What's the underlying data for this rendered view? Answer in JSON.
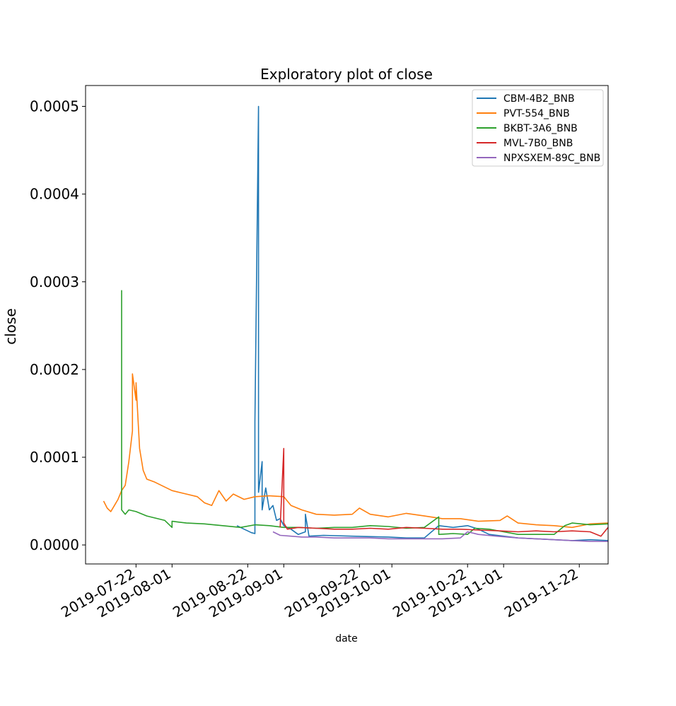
{
  "chart_data": {
    "type": "line",
    "title": "Exploratory plot of close",
    "xlabel": "date",
    "ylabel": "close",
    "xlim": [
      "2019-07-08",
      "2019-11-30"
    ],
    "ylim": [
      -2.167e-05,
      0.00052378
    ],
    "x_ticks": [
      "2019-07-22",
      "2019-08-01",
      "2019-08-22",
      "2019-09-01",
      "2019-09-22",
      "2019-10-01",
      "2019-10-22",
      "2019-11-01",
      "2019-11-22"
    ],
    "y_ticks": [
      0.0,
      0.0001,
      0.0002,
      0.0003,
      0.0004,
      0.0005
    ],
    "y_tick_labels": [
      "0.0000",
      "0.0001",
      "0.0002",
      "0.0003",
      "0.0004",
      "0.0005"
    ],
    "legend_position": "top-right",
    "series": [
      {
        "name": "CBM-4B2_BNB",
        "color": "#1f77b4",
        "points": [
          [
            "2019-08-19",
            2.2e-05
          ],
          [
            "2019-08-20",
            2e-05
          ],
          [
            "2019-08-21",
            1.8e-05
          ],
          [
            "2019-08-22",
            1.6e-05
          ],
          [
            "2019-08-23",
            1.4e-05
          ],
          [
            "2019-08-24",
            1.3e-05
          ],
          [
            "2019-08-24",
            8e-05
          ],
          [
            "2019-08-24",
            0.00014
          ],
          [
            "2019-08-25",
            0.0005
          ],
          [
            "2019-08-25",
            6e-05
          ],
          [
            "2019-08-26",
            9.5e-05
          ],
          [
            "2019-08-26",
            4e-05
          ],
          [
            "2019-08-27",
            6.5e-05
          ],
          [
            "2019-08-28",
            4e-05
          ],
          [
            "2019-08-29",
            4.5e-05
          ],
          [
            "2019-08-30",
            2.8e-05
          ],
          [
            "2019-08-31",
            3e-05
          ],
          [
            "2019-09-01",
            2.2e-05
          ],
          [
            "2019-09-03",
            1.8e-05
          ],
          [
            "2019-09-05",
            1.2e-05
          ],
          [
            "2019-09-07",
            1.5e-05
          ],
          [
            "2019-09-07",
            3.5e-05
          ],
          [
            "2019-09-08",
            1e-05
          ],
          [
            "2019-09-12",
            1.1e-05
          ],
          [
            "2019-09-20",
            1e-05
          ],
          [
            "2019-09-30",
            9e-06
          ],
          [
            "2019-10-05",
            8e-06
          ],
          [
            "2019-10-10",
            8e-06
          ],
          [
            "2019-10-12",
            1.5e-05
          ],
          [
            "2019-10-14",
            2.2e-05
          ],
          [
            "2019-10-18",
            2e-05
          ],
          [
            "2019-10-22",
            2.2e-05
          ],
          [
            "2019-10-25",
            1.8e-05
          ],
          [
            "2019-10-28",
            1.2e-05
          ],
          [
            "2019-11-01",
            1e-05
          ],
          [
            "2019-11-05",
            8e-06
          ],
          [
            "2019-11-10",
            7e-06
          ],
          [
            "2019-11-15",
            6e-06
          ],
          [
            "2019-11-20",
            5e-06
          ],
          [
            "2019-11-25",
            6e-06
          ],
          [
            "2019-11-30",
            5e-06
          ]
        ]
      },
      {
        "name": "PVT-554_BNB",
        "color": "#ff7f0e",
        "points": [
          [
            "2019-07-13",
            5e-05
          ],
          [
            "2019-07-14",
            4.2e-05
          ],
          [
            "2019-07-15",
            3.8e-05
          ],
          [
            "2019-07-16",
            4.5e-05
          ],
          [
            "2019-07-17",
            5.2e-05
          ],
          [
            "2019-07-18",
            6.2e-05
          ],
          [
            "2019-07-19",
            6.8e-05
          ],
          [
            "2019-07-20",
            9.5e-05
          ],
          [
            "2019-07-21",
            0.00013
          ],
          [
            "2019-07-21",
            0.000195
          ],
          [
            "2019-07-22",
            0.000165
          ],
          [
            "2019-07-22",
            0.000185
          ],
          [
            "2019-07-23",
            0.00011
          ],
          [
            "2019-07-24",
            8.5e-05
          ],
          [
            "2019-07-25",
            7.5e-05
          ],
          [
            "2019-07-27",
            7.2e-05
          ],
          [
            "2019-07-29",
            6.8e-05
          ],
          [
            "2019-08-01",
            6.2e-05
          ],
          [
            "2019-08-05",
            5.8e-05
          ],
          [
            "2019-08-08",
            5.5e-05
          ],
          [
            "2019-08-10",
            4.8e-05
          ],
          [
            "2019-08-12",
            4.5e-05
          ],
          [
            "2019-08-14",
            6.2e-05
          ],
          [
            "2019-08-16",
            5e-05
          ],
          [
            "2019-08-18",
            5.8e-05
          ],
          [
            "2019-08-21",
            5.2e-05
          ],
          [
            "2019-08-24",
            5.5e-05
          ],
          [
            "2019-08-28",
            5.6e-05
          ],
          [
            "2019-09-01",
            5.5e-05
          ],
          [
            "2019-09-03",
            4.5e-05
          ],
          [
            "2019-09-06",
            4e-05
          ],
          [
            "2019-09-10",
            3.5e-05
          ],
          [
            "2019-09-15",
            3.4e-05
          ],
          [
            "2019-09-20",
            3.5e-05
          ],
          [
            "2019-09-22",
            4.2e-05
          ],
          [
            "2019-09-25",
            3.5e-05
          ],
          [
            "2019-09-30",
            3.2e-05
          ],
          [
            "2019-10-05",
            3.6e-05
          ],
          [
            "2019-10-10",
            3.3e-05
          ],
          [
            "2019-10-15",
            3e-05
          ],
          [
            "2019-10-20",
            3e-05
          ],
          [
            "2019-10-25",
            2.7e-05
          ],
          [
            "2019-10-31",
            2.8e-05
          ],
          [
            "2019-11-02",
            3.3e-05
          ],
          [
            "2019-11-05",
            2.5e-05
          ],
          [
            "2019-11-10",
            2.3e-05
          ],
          [
            "2019-11-15",
            2.2e-05
          ],
          [
            "2019-11-20",
            2e-05
          ],
          [
            "2019-11-25",
            2.4e-05
          ],
          [
            "2019-11-30",
            2.5e-05
          ]
        ]
      },
      {
        "name": "BKBT-3A6_BNB",
        "color": "#2ca02c",
        "points": [
          [
            "2019-07-18",
            6.5e-05
          ],
          [
            "2019-07-18",
            0.00029
          ],
          [
            "2019-07-18",
            4e-05
          ],
          [
            "2019-07-19",
            3.5e-05
          ],
          [
            "2019-07-20",
            4e-05
          ],
          [
            "2019-07-22",
            3.8e-05
          ],
          [
            "2019-07-25",
            3.3e-05
          ],
          [
            "2019-07-28",
            3e-05
          ],
          [
            "2019-07-30",
            2.8e-05
          ],
          [
            "2019-08-01",
            2e-05
          ],
          [
            "2019-08-01",
            2.7e-05
          ],
          [
            "2019-08-05",
            2.5e-05
          ],
          [
            "2019-08-10",
            2.4e-05
          ],
          [
            "2019-08-15",
            2.2e-05
          ],
          [
            "2019-08-20",
            2e-05
          ],
          [
            "2019-08-24",
            2.3e-05
          ],
          [
            "2019-08-28",
            2.2e-05
          ],
          [
            "2019-09-01",
            2e-05
          ],
          [
            "2019-09-05",
            2e-05
          ],
          [
            "2019-09-10",
            1.9e-05
          ],
          [
            "2019-09-15",
            2e-05
          ],
          [
            "2019-09-20",
            2e-05
          ],
          [
            "2019-09-25",
            2.2e-05
          ],
          [
            "2019-09-30",
            2.1e-05
          ],
          [
            "2019-10-05",
            1.9e-05
          ],
          [
            "2019-10-10",
            2e-05
          ],
          [
            "2019-10-14",
            3.2e-05
          ],
          [
            "2019-10-14",
            1.2e-05
          ],
          [
            "2019-10-18",
            1.3e-05
          ],
          [
            "2019-10-22",
            1.2e-05
          ],
          [
            "2019-10-24",
            1.9e-05
          ],
          [
            "2019-10-28",
            1.8e-05
          ],
          [
            "2019-11-01",
            1.5e-05
          ],
          [
            "2019-11-05",
            1.2e-05
          ],
          [
            "2019-11-10",
            1.2e-05
          ],
          [
            "2019-11-15",
            1.2e-05
          ],
          [
            "2019-11-18",
            2.2e-05
          ],
          [
            "2019-11-20",
            2.5e-05
          ],
          [
            "2019-11-25",
            2.3e-05
          ],
          [
            "2019-11-30",
            2.4e-05
          ]
        ]
      },
      {
        "name": "MVL-7B0_BNB",
        "color": "#d62728",
        "points": [
          [
            "2019-08-31",
            2e-05
          ],
          [
            "2019-09-01",
            0.00011
          ],
          [
            "2019-09-01",
            2.5e-05
          ],
          [
            "2019-09-02",
            1.8e-05
          ],
          [
            "2019-09-05",
            2e-05
          ],
          [
            "2019-09-10",
            1.9e-05
          ],
          [
            "2019-09-15",
            1.8e-05
          ],
          [
            "2019-09-20",
            1.8e-05
          ],
          [
            "2019-09-25",
            1.9e-05
          ],
          [
            "2019-09-30",
            1.8e-05
          ],
          [
            "2019-10-05",
            2e-05
          ],
          [
            "2019-10-10",
            1.9e-05
          ],
          [
            "2019-10-15",
            1.8e-05
          ],
          [
            "2019-10-20",
            1.8e-05
          ],
          [
            "2019-10-25",
            1.7e-05
          ],
          [
            "2019-10-31",
            1.6e-05
          ],
          [
            "2019-11-05",
            1.5e-05
          ],
          [
            "2019-11-10",
            1.6e-05
          ],
          [
            "2019-11-15",
            1.5e-05
          ],
          [
            "2019-11-20",
            1.6e-05
          ],
          [
            "2019-11-25",
            1.5e-05
          ],
          [
            "2019-11-28",
            1e-05
          ],
          [
            "2019-11-30",
            2e-05
          ]
        ]
      },
      {
        "name": "NPXSXEM-89C_BNB",
        "color": "#9467bd",
        "points": [
          [
            "2019-08-29",
            1.5e-05
          ],
          [
            "2019-08-31",
            1.1e-05
          ],
          [
            "2019-09-03",
            1e-05
          ],
          [
            "2019-09-06",
            9e-06
          ],
          [
            "2019-09-10",
            9e-06
          ],
          [
            "2019-09-15",
            8e-06
          ],
          [
            "2019-09-20",
            8e-06
          ],
          [
            "2019-09-25",
            8e-06
          ],
          [
            "2019-09-30",
            7e-06
          ],
          [
            "2019-10-05",
            7e-06
          ],
          [
            "2019-10-10",
            7e-06
          ],
          [
            "2019-10-15",
            7e-06
          ],
          [
            "2019-10-20",
            8e-06
          ],
          [
            "2019-10-22",
            1.5e-05
          ],
          [
            "2019-10-25",
            1.2e-05
          ],
          [
            "2019-10-30",
            1e-05
          ],
          [
            "2019-11-05",
            8e-06
          ],
          [
            "2019-11-10",
            7e-06
          ],
          [
            "2019-11-15",
            6e-06
          ],
          [
            "2019-11-20",
            5e-06
          ],
          [
            "2019-11-25",
            4e-06
          ],
          [
            "2019-11-30",
            4e-06
          ]
        ]
      }
    ]
  }
}
